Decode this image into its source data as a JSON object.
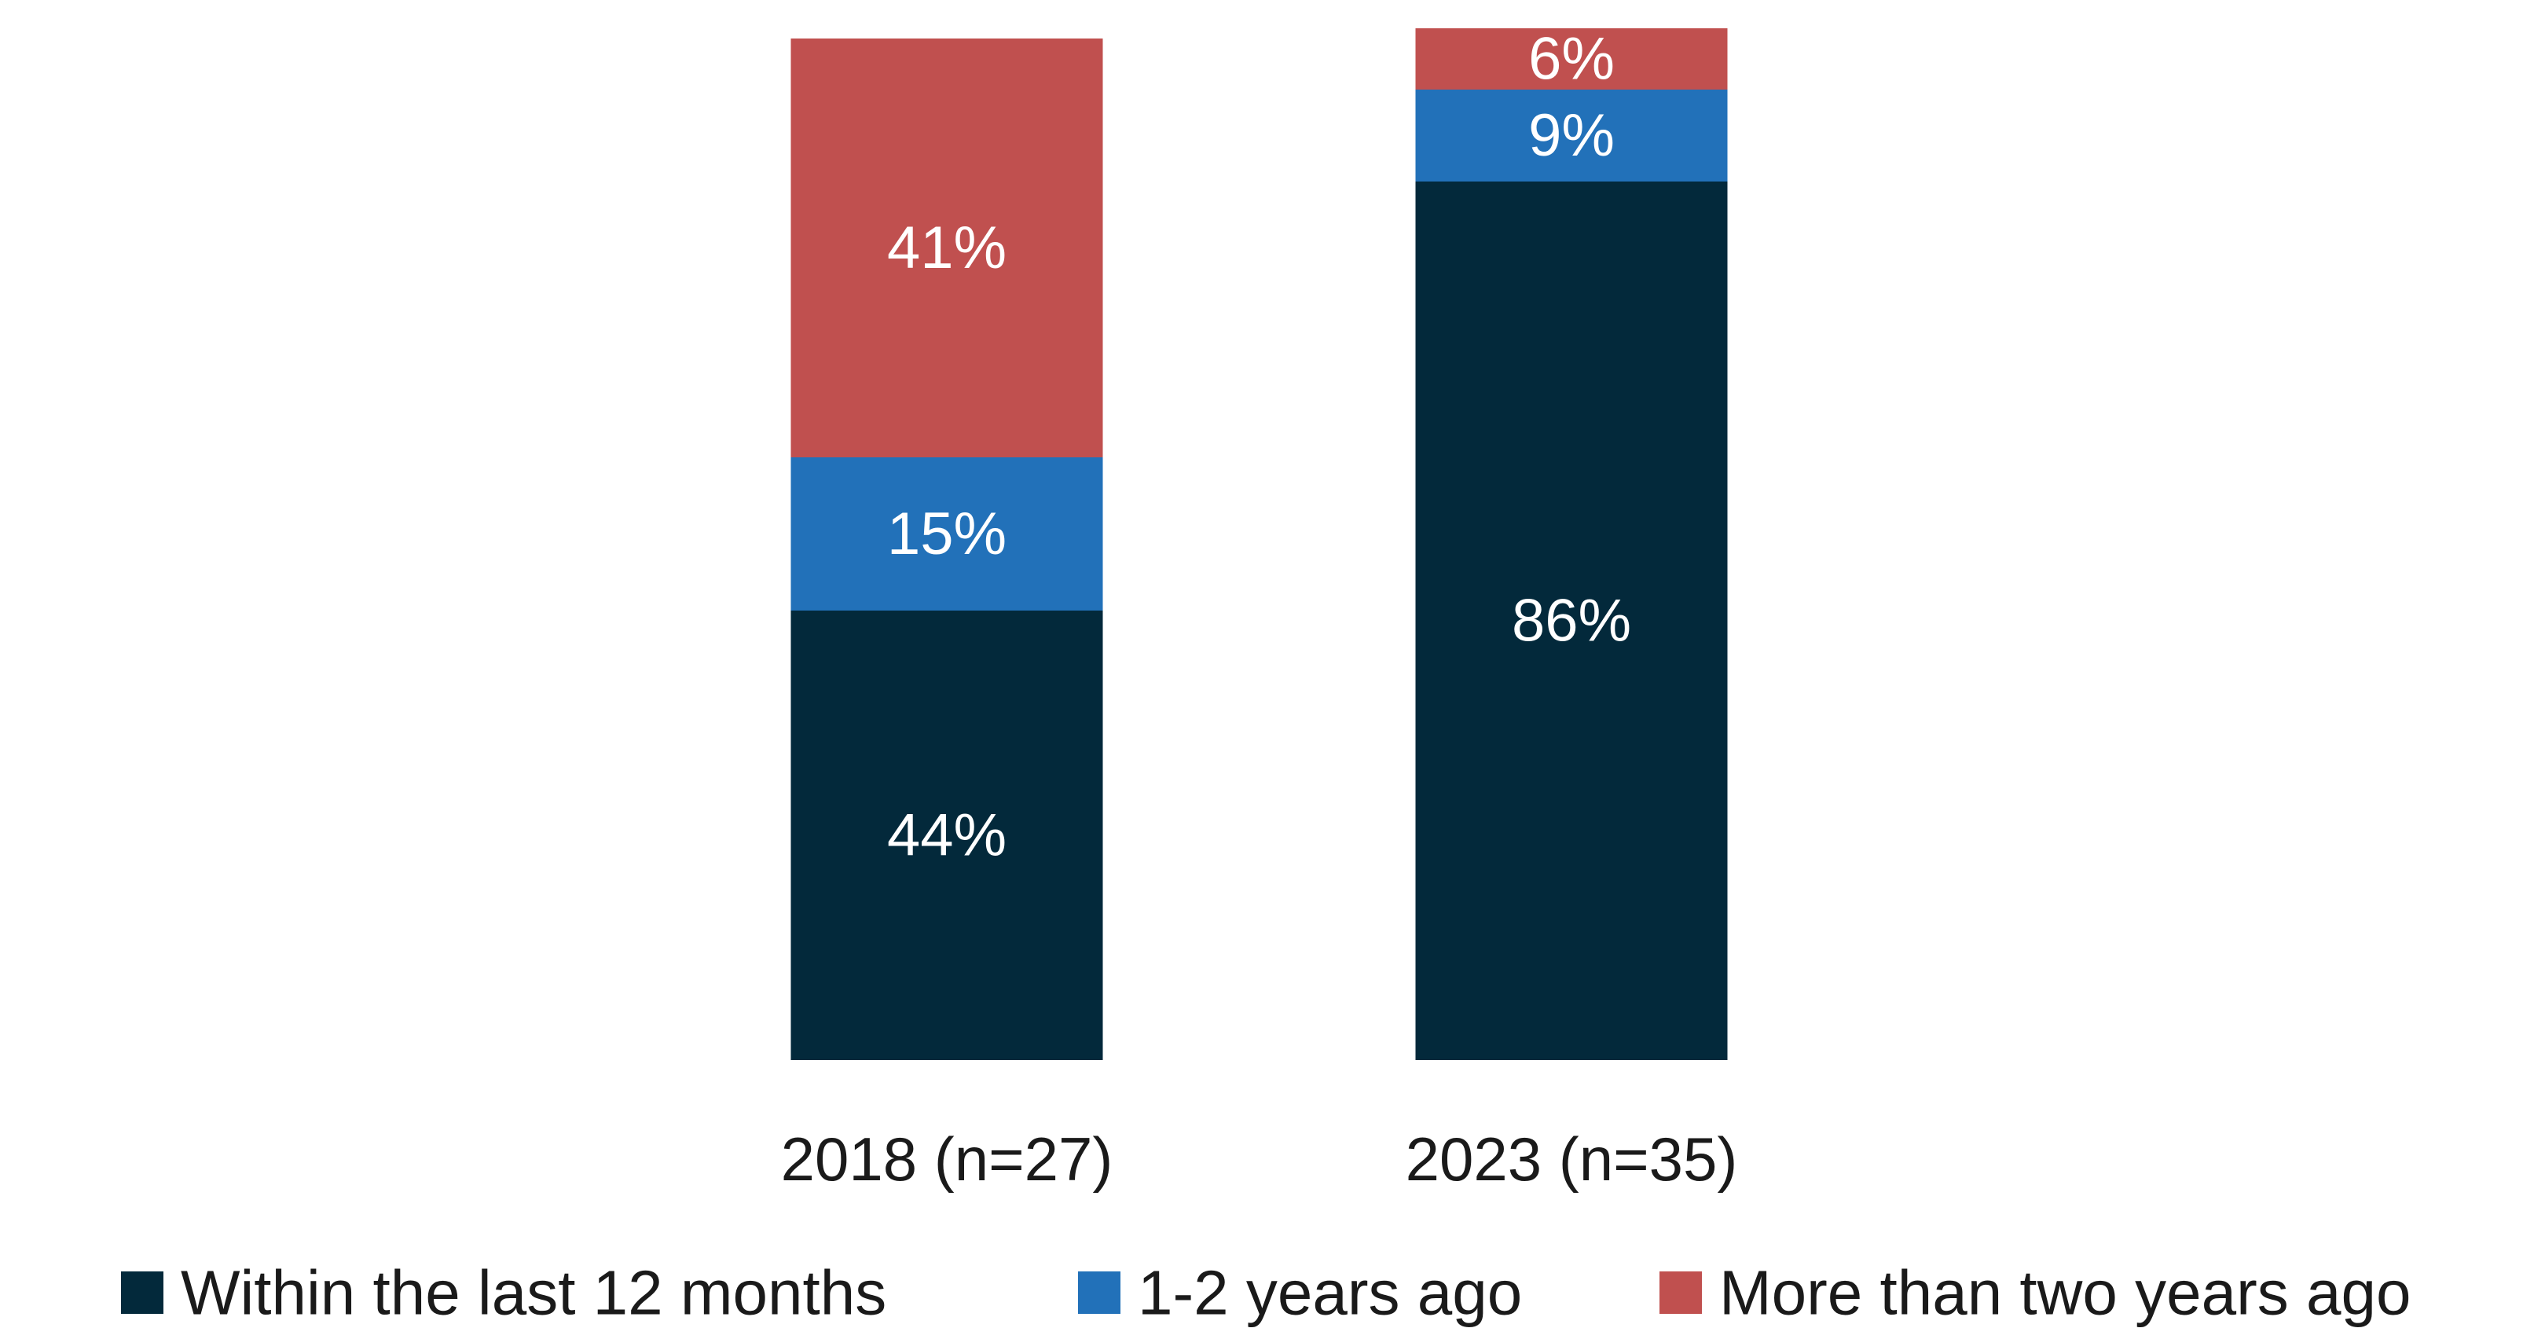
{
  "chart_data": {
    "type": "bar",
    "stacked": true,
    "categories": [
      "2018 (n=27)",
      "2023 (n=35)"
    ],
    "series": [
      {
        "name": "Within the last 12 months",
        "color": "#03293b",
        "values": [
          44,
          86
        ],
        "labels": [
          "44%",
          "86%"
        ]
      },
      {
        "name": "1-2 years ago",
        "color": "#2271b9",
        "values": [
          15,
          9
        ],
        "labels": [
          "15%",
          "9%"
        ]
      },
      {
        "name": "More than two years ago",
        "color": "#c0504f",
        "values": [
          41,
          6
        ],
        "labels": [
          "41%",
          "6%"
        ]
      }
    ],
    "title": "",
    "xlabel": "",
    "ylabel": "",
    "ylim": [
      0,
      101
    ],
    "grid": false,
    "legend_position": "bottom"
  }
}
